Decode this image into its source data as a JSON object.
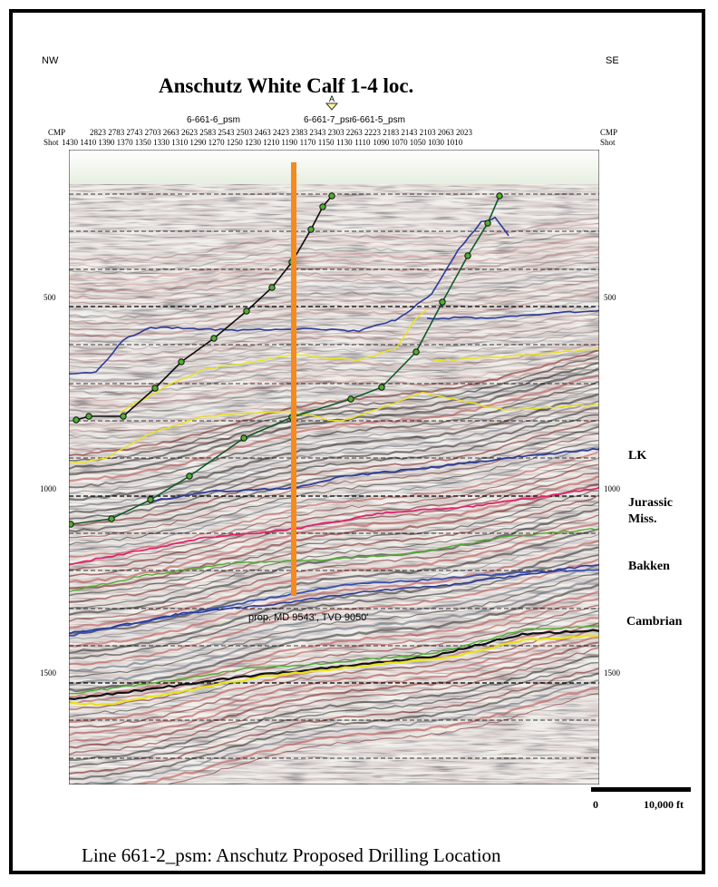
{
  "title": "Anschutz White Calf 1-4 loc.",
  "caption": "Line 661-2_psm: Anschutz Proposed Drilling Location",
  "direction": {
    "left": "NW",
    "right": "SE"
  },
  "marker": {
    "label": "A"
  },
  "wells": [
    {
      "label": "6-661-6_psm"
    },
    {
      "label": "6-661-7_psm"
    },
    {
      "label": "6-661-5_psm"
    }
  ],
  "axis_header": {
    "cmp_label": "CMP",
    "shot_label": "Shot"
  },
  "cmp_ticks": [
    "2823",
    "2783",
    "2743",
    "2703",
    "2663",
    "2623",
    "2583",
    "2543",
    "2503",
    "2463",
    "2423",
    "2383",
    "2343",
    "2303",
    "2263",
    "2223",
    "2183",
    "2143",
    "2103",
    "2063",
    "2023"
  ],
  "shot_ticks": [
    "1430",
    "1410",
    "1390",
    "1370",
    "1350",
    "1330",
    "1310",
    "1290",
    "1270",
    "1250",
    "1230",
    "1210",
    "1190",
    "1170",
    "1150",
    "1130",
    "1110",
    "1090",
    "1070",
    "1050",
    "1030",
    "1010"
  ],
  "time_ticks": [
    "500",
    "1000",
    "1500"
  ],
  "horizons": [
    {
      "name": "LK",
      "color": "#2d3a9e"
    },
    {
      "name": "Jurassic",
      "color": "#e0246e"
    },
    {
      "name": "Miss.",
      "color": "#4fae2f"
    },
    {
      "name": "Bakken",
      "color": "#3a50b0"
    },
    {
      "name": "Cambrian",
      "color": "#e8e41a"
    }
  ],
  "well_annotation": "prop. MD 9543', TVD 9050'",
  "scale_bar": {
    "start": "0",
    "end": "10,000 ft"
  },
  "chart_data": {
    "type": "seismic-section",
    "title": "Anschutz White Calf 1-4 loc.",
    "x_top_axis": {
      "label": "CMP",
      "ticks": [
        2823,
        2783,
        2743,
        2703,
        2663,
        2623,
        2583,
        2543,
        2503,
        2463,
        2423,
        2383,
        2343,
        2303,
        2263,
        2223,
        2183,
        2143,
        2103,
        2063,
        2023
      ]
    },
    "x_shot_axis": {
      "label": "Shot",
      "ticks": [
        1430,
        1410,
        1390,
        1370,
        1350,
        1330,
        1310,
        1290,
        1270,
        1250,
        1230,
        1210,
        1190,
        1170,
        1150,
        1130,
        1110,
        1090,
        1070,
        1050,
        1030,
        1010
      ]
    },
    "y_axis": {
      "ticks": [
        500,
        1000,
        1500
      ],
      "ylim": [
        200,
        1850
      ],
      "reversed": true
    },
    "horizon_labels": [
      "LK",
      "Jurassic",
      "Miss.",
      "Bakken",
      "Cambrian"
    ],
    "proposed_well": {
      "shot": 1250,
      "annotation": "prop. MD 9543', TVD 9050'"
    }
  }
}
